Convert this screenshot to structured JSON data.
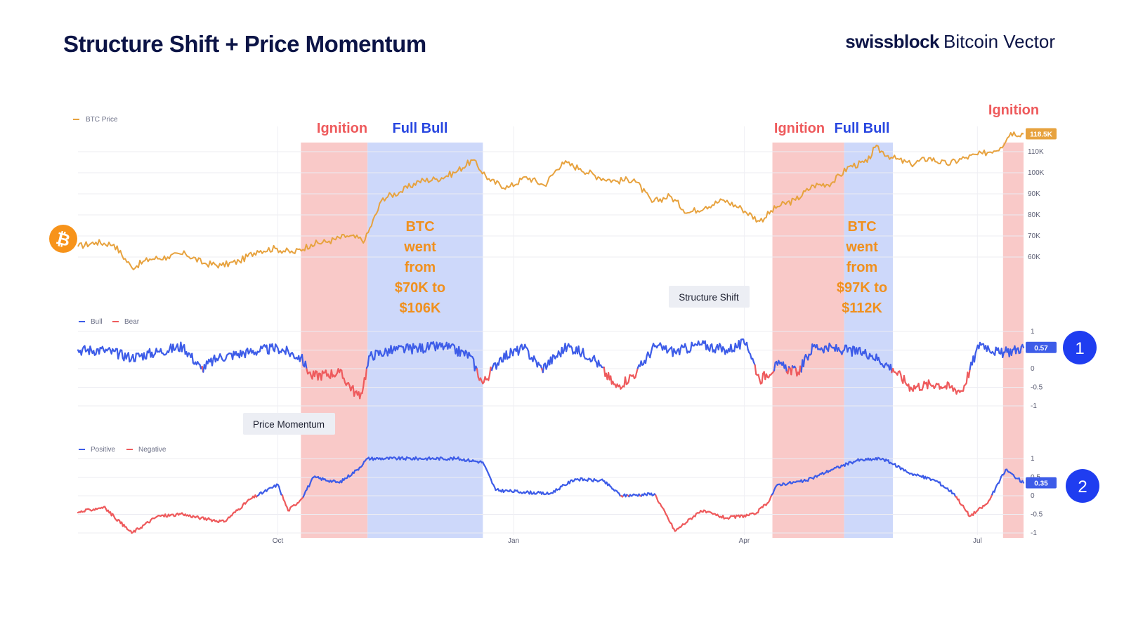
{
  "header": {
    "title": "Structure Shift + Price Momentum",
    "brand_bold": "swissblock",
    "brand_light": "Bitcoin Vector"
  },
  "colors": {
    "price": "#e7a23e",
    "bull": "#3d5ce8",
    "bear": "#ee5a5c",
    "ignition_band": "#f9c9c8",
    "fullbull_band": "#cdd8fa",
    "ignition_text": "#ee5a5c",
    "fullbull_text": "#2846e0",
    "annotation": "#f0901e",
    "badge": "#1f3df0"
  },
  "icons": {
    "bitcoin": "bitcoin-icon"
  },
  "phases": [
    {
      "label": "Ignition",
      "type": "ignition",
      "start": "2024-10-10",
      "end": "2024-11-05"
    },
    {
      "label": "Full Bull",
      "type": "fullbull",
      "start": "2024-11-05",
      "end": "2024-12-20"
    },
    {
      "label": "Ignition",
      "type": "ignition",
      "start": "2025-04-12",
      "end": "2025-05-10"
    },
    {
      "label": "Full Bull",
      "type": "fullbull",
      "start": "2025-05-10",
      "end": "2025-05-29"
    },
    {
      "label": "Ignition",
      "type": "ignition",
      "start": "2025-07-11",
      "end": "2025-07-19"
    }
  ],
  "annotations": {
    "a1": [
      "BTC",
      "went",
      "from",
      "$70K to",
      "$106K"
    ],
    "a2": [
      "BTC",
      "went",
      "from",
      "$97K to",
      "$112K"
    ]
  },
  "panel_labels": {
    "structure": "Structure Shift",
    "momentum": "Price Momentum"
  },
  "badges": {
    "one": "1",
    "two": "2"
  },
  "chart_data": [
    {
      "type": "line",
      "title": "BTC Price",
      "legend": [
        "BTC Price"
      ],
      "x_range": [
        "2024-07-15",
        "2025-07-19"
      ],
      "x_ticks": [
        "Oct",
        "Jan",
        "Apr",
        "Jul"
      ],
      "y_ticks": [
        "110K",
        "100K",
        "90K",
        "80K",
        "70K",
        "60K"
      ],
      "ylim": [
        55000,
        120000
      ],
      "last_value_label": "118.5K",
      "series": [
        {
          "name": "BTC Price",
          "points": [
            [
              "2024-07-15",
              65000
            ],
            [
              "2024-07-22",
              67000
            ],
            [
              "2024-07-29",
              66000
            ],
            [
              "2024-08-05",
              55000
            ],
            [
              "2024-08-12",
              59000
            ],
            [
              "2024-08-19",
              60000
            ],
            [
              "2024-08-26",
              61500
            ],
            [
              "2024-09-02",
              57000
            ],
            [
              "2024-09-09",
              56000
            ],
            [
              "2024-09-16",
              58000
            ],
            [
              "2024-09-23",
              63000
            ],
            [
              "2024-09-30",
              64000
            ],
            [
              "2024-10-07",
              62000
            ],
            [
              "2024-10-14",
              66000
            ],
            [
              "2024-10-21",
              67500
            ],
            [
              "2024-10-28",
              70000
            ],
            [
              "2024-11-04",
              68000
            ],
            [
              "2024-11-11",
              88000
            ],
            [
              "2024-11-18",
              91000
            ],
            [
              "2024-11-25",
              96000
            ],
            [
              "2024-12-02",
              97000
            ],
            [
              "2024-12-09",
              100000
            ],
            [
              "2024-12-16",
              106000
            ],
            [
              "2024-12-23",
              96000
            ],
            [
              "2024-12-30",
              93000
            ],
            [
              "2025-01-06",
              98000
            ],
            [
              "2025-01-13",
              94000
            ],
            [
              "2025-01-20",
              105000
            ],
            [
              "2025-01-27",
              102000
            ],
            [
              "2025-02-03",
              98000
            ],
            [
              "2025-02-10",
              96000
            ],
            [
              "2025-02-17",
              97000
            ],
            [
              "2025-02-24",
              86000
            ],
            [
              "2025-03-03",
              89000
            ],
            [
              "2025-03-10",
              81000
            ],
            [
              "2025-03-17",
              84000
            ],
            [
              "2025-03-24",
              87000
            ],
            [
              "2025-03-31",
              83000
            ],
            [
              "2025-04-07",
              77000
            ],
            [
              "2025-04-14",
              84000
            ],
            [
              "2025-04-21",
              87000
            ],
            [
              "2025-04-28",
              94000
            ],
            [
              "2025-05-05",
              95000
            ],
            [
              "2025-05-12",
              103000
            ],
            [
              "2025-05-19",
              105000
            ],
            [
              "2025-05-22",
              112000
            ],
            [
              "2025-05-29",
              107000
            ],
            [
              "2025-06-05",
              104000
            ],
            [
              "2025-06-12",
              107000
            ],
            [
              "2025-06-19",
              104000
            ],
            [
              "2025-06-26",
              107000
            ],
            [
              "2025-07-03",
              109000
            ],
            [
              "2025-07-10",
              112000
            ],
            [
              "2025-07-14",
              119000
            ],
            [
              "2025-07-19",
              118500
            ]
          ]
        }
      ]
    },
    {
      "type": "line",
      "title": "Structure Shift",
      "legend": [
        "Bull",
        "Bear"
      ],
      "y_ticks": [
        "1",
        "0",
        "-0.5",
        "-1"
      ],
      "ylim": [
        -1,
        1
      ],
      "last_value_label": "0.57",
      "series": [
        {
          "name": "Structure Shift",
          "points": [
            [
              "2024-07-15",
              0.5
            ],
            [
              "2024-07-25",
              0.5
            ],
            [
              "2024-08-05",
              0.3
            ],
            [
              "2024-08-15",
              0.45
            ],
            [
              "2024-08-25",
              0.6
            ],
            [
              "2024-09-01",
              0.0
            ],
            [
              "2024-09-08",
              0.3
            ],
            [
              "2024-09-20",
              0.45
            ],
            [
              "2024-10-01",
              0.55
            ],
            [
              "2024-10-10",
              0.3
            ],
            [
              "2024-10-14",
              -0.2
            ],
            [
              "2024-10-25",
              -0.1
            ],
            [
              "2024-11-02",
              -0.8
            ],
            [
              "2024-11-06",
              0.35
            ],
            [
              "2024-11-15",
              0.5
            ],
            [
              "2024-11-25",
              0.55
            ],
            [
              "2024-12-05",
              0.6
            ],
            [
              "2024-12-15",
              0.35
            ],
            [
              "2024-12-20",
              -0.4
            ],
            [
              "2024-12-27",
              0.3
            ],
            [
              "2025-01-05",
              0.55
            ],
            [
              "2025-01-12",
              0.0
            ],
            [
              "2025-01-22",
              0.6
            ],
            [
              "2025-02-01",
              0.3
            ],
            [
              "2025-02-10",
              -0.5
            ],
            [
              "2025-02-18",
              -0.1
            ],
            [
              "2025-02-25",
              0.6
            ],
            [
              "2025-03-05",
              0.45
            ],
            [
              "2025-03-15",
              0.65
            ],
            [
              "2025-03-25",
              0.5
            ],
            [
              "2025-04-02",
              0.7
            ],
            [
              "2025-04-07",
              -0.3
            ],
            [
              "2025-04-14",
              0.1
            ],
            [
              "2025-04-22",
              -0.1
            ],
            [
              "2025-04-28",
              0.6
            ],
            [
              "2025-05-10",
              0.5
            ],
            [
              "2025-05-20",
              0.4
            ],
            [
              "2025-05-29",
              0.0
            ],
            [
              "2025-06-05",
              -0.5
            ],
            [
              "2025-06-15",
              -0.4
            ],
            [
              "2025-06-25",
              -0.6
            ],
            [
              "2025-07-02",
              0.7
            ],
            [
              "2025-07-10",
              0.4
            ],
            [
              "2025-07-19",
              0.57
            ]
          ]
        }
      ]
    },
    {
      "type": "line",
      "title": "Price Momentum",
      "legend": [
        "Positive",
        "Negative"
      ],
      "y_ticks": [
        "1",
        "0.5",
        "0",
        "-0.5",
        "-1"
      ],
      "ylim": [
        -1,
        1
      ],
      "last_value_label": "0.35",
      "series": [
        {
          "name": "Price Momentum",
          "points": [
            [
              "2024-07-15",
              -0.45
            ],
            [
              "2024-07-25",
              -0.3
            ],
            [
              "2024-08-05",
              -1.0
            ],
            [
              "2024-08-15",
              -0.55
            ],
            [
              "2024-08-25",
              -0.5
            ],
            [
              "2024-09-01",
              -0.6
            ],
            [
              "2024-09-10",
              -0.7
            ],
            [
              "2024-09-20",
              -0.1
            ],
            [
              "2024-10-01",
              0.3
            ],
            [
              "2024-10-05",
              -0.4
            ],
            [
              "2024-10-10",
              -0.1
            ],
            [
              "2024-10-15",
              0.5
            ],
            [
              "2024-10-25",
              0.35
            ],
            [
              "2024-11-01",
              0.7
            ],
            [
              "2024-11-05",
              1.0
            ],
            [
              "2024-12-10",
              1.0
            ],
            [
              "2024-12-20",
              0.9
            ],
            [
              "2024-12-25",
              0.15
            ],
            [
              "2025-01-05",
              0.1
            ],
            [
              "2025-01-15",
              0.05
            ],
            [
              "2025-01-25",
              0.45
            ],
            [
              "2025-02-05",
              0.4
            ],
            [
              "2025-02-12",
              0.0
            ],
            [
              "2025-02-25",
              0.05
            ],
            [
              "2025-03-05",
              -0.95
            ],
            [
              "2025-03-15",
              -0.4
            ],
            [
              "2025-03-25",
              -0.6
            ],
            [
              "2025-04-05",
              -0.5
            ],
            [
              "2025-04-10",
              -0.2
            ],
            [
              "2025-04-14",
              0.3
            ],
            [
              "2025-04-25",
              0.4
            ],
            [
              "2025-05-05",
              0.7
            ],
            [
              "2025-05-15",
              0.95
            ],
            [
              "2025-05-25",
              1.0
            ],
            [
              "2025-06-05",
              0.6
            ],
            [
              "2025-06-15",
              0.4
            ],
            [
              "2025-06-22",
              0.05
            ],
            [
              "2025-06-28",
              -0.55
            ],
            [
              "2025-07-05",
              -0.2
            ],
            [
              "2025-07-12",
              0.7
            ],
            [
              "2025-07-19",
              0.35
            ]
          ]
        }
      ]
    }
  ]
}
